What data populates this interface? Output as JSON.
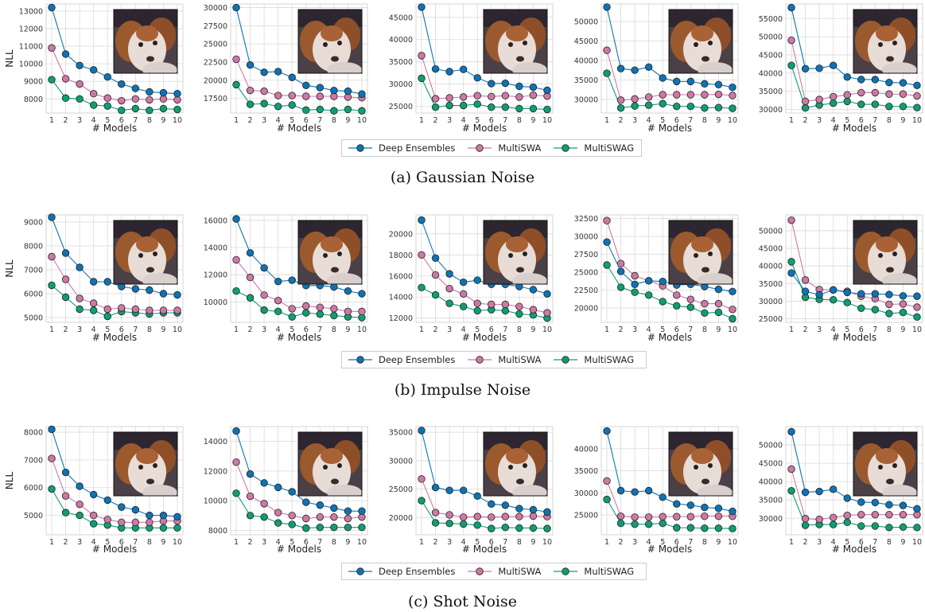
{
  "legend": {
    "deep_ensembles": "Deep Ensembles",
    "multiswa": "MultiSWA",
    "multiswag": "MultiSWAG"
  },
  "captions": [
    "(a)  Gaussian Noise",
    "(b)  Impulse Noise",
    "(c)  Shot Noise"
  ],
  "colors": {
    "deep_ensembles": "#0e73b5",
    "multiswa": "#cc79a7",
    "multiswag": "#0f9e73"
  },
  "chart_data": [
    {
      "type": "line",
      "row": "(a)  Gaussian Noise",
      "xlabel": "# Models",
      "ylabel": "NLL",
      "x": [
        1,
        2,
        3,
        4,
        5,
        6,
        7,
        8,
        9,
        10
      ],
      "yticks": [
        8000,
        9000,
        10000,
        11000,
        12000,
        13000
      ],
      "ylim": [
        7200,
        13400
      ],
      "series": [
        {
          "name": "Deep Ensembles",
          "values": [
            13200,
            10550,
            9900,
            9650,
            9250,
            8850,
            8600,
            8400,
            8350,
            8300
          ]
        },
        {
          "name": "MultiSWA",
          "values": [
            10900,
            9150,
            8850,
            8300,
            8050,
            7900,
            8000,
            7950,
            8000,
            7950
          ]
        },
        {
          "name": "MultiSWAG",
          "values": [
            9100,
            8050,
            8000,
            7650,
            7600,
            7350,
            7450,
            7350,
            7450,
            7400
          ]
        }
      ]
    },
    {
      "type": "line",
      "row": "(a)  Gaussian Noise",
      "xlabel": "# Models",
      "ylabel": "",
      "x": [
        1,
        2,
        3,
        4,
        5,
        6,
        7,
        8,
        9,
        10
      ],
      "yticks": [
        17500,
        20000,
        22500,
        25000,
        27500,
        30000
      ],
      "ylim": [
        15500,
        30500
      ],
      "series": [
        {
          "name": "Deep Ensembles",
          "values": [
            30000,
            22100,
            21100,
            21200,
            20400,
            19300,
            19000,
            18600,
            18500,
            18100
          ]
        },
        {
          "name": "MultiSWA",
          "values": [
            22900,
            18600,
            18500,
            17900,
            17900,
            17800,
            17800,
            17800,
            17700,
            17600
          ]
        },
        {
          "name": "MultiSWAG",
          "values": [
            19400,
            16700,
            16800,
            16400,
            16600,
            15900,
            16000,
            15800,
            16000,
            15800
          ]
        }
      ]
    },
    {
      "type": "line",
      "row": "(a)  Gaussian Noise",
      "xlabel": "# Models",
      "ylabel": "",
      "x": [
        1,
        2,
        3,
        4,
        5,
        6,
        7,
        8,
        9,
        10
      ],
      "yticks": [
        25000,
        30000,
        35000,
        40000,
        45000
      ],
      "ylim": [
        23500,
        48000
      ],
      "series": [
        {
          "name": "Deep Ensembles",
          "values": [
            47300,
            33400,
            32800,
            33300,
            31400,
            30100,
            30200,
            29500,
            29300,
            28600
          ]
        },
        {
          "name": "MultiSWA",
          "values": [
            36400,
            26700,
            26900,
            27100,
            27400,
            27200,
            27400,
            27100,
            27500,
            27300
          ]
        },
        {
          "name": "MultiSWAG",
          "values": [
            31300,
            24800,
            25200,
            25200,
            25500,
            24800,
            24800,
            24500,
            24500,
            24300
          ]
        }
      ]
    },
    {
      "type": "line",
      "row": "(a)  Gaussian Noise",
      "xlabel": "# Models",
      "ylabel": "",
      "x": [
        1,
        2,
        3,
        4,
        5,
        6,
        7,
        8,
        9,
        10
      ],
      "yticks": [
        30000,
        35000,
        40000,
        45000,
        50000
      ],
      "ylim": [
        26500,
        54500
      ],
      "series": [
        {
          "name": "Deep Ensembles",
          "values": [
            53700,
            37900,
            37500,
            38300,
            35500,
            34600,
            34600,
            34000,
            33800,
            33100
          ]
        },
        {
          "name": "MultiSWA",
          "values": [
            42600,
            29800,
            30100,
            30600,
            31200,
            31200,
            31200,
            31200,
            31300,
            31000
          ]
        },
        {
          "name": "MultiSWAG",
          "values": [
            36700,
            27800,
            28300,
            28500,
            28900,
            28200,
            28200,
            27800,
            27900,
            27700
          ]
        }
      ]
    },
    {
      "type": "line",
      "row": "(a)  Gaussian Noise",
      "xlabel": "# Models",
      "ylabel": "",
      "x": [
        1,
        2,
        3,
        4,
        5,
        6,
        7,
        8,
        9,
        10
      ],
      "yticks": [
        30000,
        35000,
        40000,
        45000,
        50000,
        55000
      ],
      "ylim": [
        29000,
        59000
      ],
      "series": [
        {
          "name": "Deep Ensembles",
          "values": [
            58000,
            41200,
            41300,
            42100,
            38900,
            38200,
            38200,
            37400,
            37300,
            36600
          ]
        },
        {
          "name": "MultiSWA",
          "values": [
            49000,
            32200,
            32700,
            33500,
            34000,
            34600,
            34600,
            34200,
            34200,
            33700
          ]
        },
        {
          "name": "MultiSWAG",
          "values": [
            42100,
            30400,
            31200,
            31700,
            32200,
            31400,
            31400,
            30800,
            30800,
            30500
          ]
        }
      ]
    },
    {
      "type": "line",
      "row": "(b)  Impulse Noise",
      "xlabel": "# Models",
      "ylabel": "NLL",
      "x": [
        1,
        2,
        3,
        4,
        5,
        6,
        7,
        8,
        9,
        10
      ],
      "yticks": [
        5000,
        6000,
        7000,
        8000,
        9000
      ],
      "ylim": [
        4800,
        9300
      ],
      "series": [
        {
          "name": "Deep Ensembles",
          "values": [
            9200,
            7700,
            7100,
            6500,
            6500,
            6300,
            6200,
            6150,
            6000,
            5950
          ]
        },
        {
          "name": "MultiSWA",
          "values": [
            7550,
            6600,
            5800,
            5600,
            5350,
            5400,
            5350,
            5300,
            5300,
            5300
          ]
        },
        {
          "name": "MultiSWAG",
          "values": [
            6350,
            5850,
            5350,
            5300,
            5050,
            5250,
            5200,
            5150,
            5200,
            5200
          ]
        }
      ]
    },
    {
      "type": "line",
      "row": "(b)  Impulse Noise",
      "xlabel": "# Models",
      "ylabel": "",
      "x": [
        1,
        2,
        3,
        4,
        5,
        6,
        7,
        8,
        9,
        10
      ],
      "yticks": [
        10000,
        12000,
        14000,
        16000
      ],
      "ylim": [
        8500,
        16400
      ],
      "series": [
        {
          "name": "Deep Ensembles",
          "values": [
            16100,
            13600,
            12500,
            11500,
            11600,
            11200,
            11200,
            11100,
            10800,
            10600
          ]
        },
        {
          "name": "MultiSWA",
          "values": [
            13100,
            11800,
            10500,
            10100,
            9500,
            9700,
            9600,
            9500,
            9300,
            9300
          ]
        },
        {
          "name": "MultiSWAG",
          "values": [
            10800,
            10300,
            9400,
            9300,
            8900,
            9200,
            9100,
            9000,
            8900,
            8850
          ]
        }
      ]
    },
    {
      "type": "line",
      "row": "(b)  Impulse Noise",
      "xlabel": "# Models",
      "ylabel": "",
      "x": [
        1,
        2,
        3,
        4,
        5,
        6,
        7,
        8,
        9,
        10
      ],
      "yticks": [
        12000,
        14000,
        16000,
        18000,
        20000
      ],
      "ylim": [
        11600,
        21800
      ],
      "series": [
        {
          "name": "Deep Ensembles",
          "values": [
            21300,
            17700,
            16200,
            15400,
            15600,
            15200,
            15200,
            15000,
            14700,
            14300
          ]
        },
        {
          "name": "MultiSWA",
          "values": [
            18000,
            16100,
            14800,
            14300,
            13400,
            13300,
            13300,
            13100,
            12800,
            12500
          ]
        },
        {
          "name": "MultiSWAG",
          "values": [
            14900,
            14200,
            13400,
            13100,
            12700,
            12800,
            12700,
            12400,
            12300,
            12000
          ]
        }
      ]
    },
    {
      "type": "line",
      "row": "(b)  Impulse Noise",
      "xlabel": "# Models",
      "ylabel": "",
      "x": [
        1,
        2,
        3,
        4,
        5,
        6,
        7,
        8,
        9,
        10
      ],
      "yticks": [
        20000,
        22500,
        25000,
        27500,
        30000,
        32500
      ],
      "ylim": [
        18000,
        33000
      ],
      "series": [
        {
          "name": "Deep Ensembles",
          "values": [
            29200,
            25100,
            23300,
            23800,
            23700,
            23200,
            23300,
            23000,
            22600,
            22300
          ]
        },
        {
          "name": "MultiSWA",
          "values": [
            32200,
            26200,
            24500,
            23800,
            23100,
            21800,
            21200,
            20600,
            20600,
            19800
          ]
        },
        {
          "name": "MultiSWAG",
          "values": [
            26000,
            22900,
            22200,
            21800,
            20900,
            20300,
            20100,
            19300,
            19400,
            18500
          ]
        }
      ]
    },
    {
      "type": "line",
      "row": "(b)  Impulse Noise",
      "xlabel": "# Models",
      "ylabel": "",
      "x": [
        1,
        2,
        3,
        4,
        5,
        6,
        7,
        8,
        9,
        10
      ],
      "yticks": [
        25000,
        30000,
        35000,
        40000,
        45000,
        50000
      ],
      "ylim": [
        24000,
        54500
      ],
      "series": [
        {
          "name": "Deep Ensembles",
          "values": [
            38000,
            32800,
            31800,
            33200,
            32500,
            32100,
            32100,
            31900,
            31500,
            31400
          ]
        },
        {
          "name": "MultiSWA",
          "values": [
            53000,
            36000,
            33300,
            33200,
            32800,
            31400,
            30700,
            29100,
            29200,
            28300
          ]
        },
        {
          "name": "MultiSWAG",
          "values": [
            41200,
            31100,
            30500,
            30400,
            29600,
            28000,
            27600,
            26500,
            26800,
            25500
          ]
        }
      ]
    },
    {
      "type": "line",
      "row": "(c)  Shot Noise",
      "xlabel": "# Models",
      "ylabel": "NLL",
      "x": [
        1,
        2,
        3,
        4,
        5,
        6,
        7,
        8,
        9,
        10
      ],
      "yticks": [
        5000,
        6000,
        7000,
        8000
      ],
      "ylim": [
        4300,
        8200
      ],
      "series": [
        {
          "name": "Deep Ensembles",
          "values": [
            8100,
            6550,
            6050,
            5750,
            5550,
            5300,
            5200,
            5000,
            5000,
            4950
          ]
        },
        {
          "name": "MultiSWA",
          "values": [
            7050,
            5700,
            5400,
            5000,
            4850,
            4750,
            4750,
            4750,
            4800,
            4800
          ]
        },
        {
          "name": "MultiSWAG",
          "values": [
            5950,
            5100,
            5000,
            4700,
            4650,
            4550,
            4550,
            4550,
            4550,
            4550
          ]
        }
      ]
    },
    {
      "type": "line",
      "row": "(c)  Shot Noise",
      "xlabel": "# Models",
      "ylabel": "",
      "x": [
        1,
        2,
        3,
        4,
        5,
        6,
        7,
        8,
        9,
        10
      ],
      "yticks": [
        8000,
        10000,
        12000,
        14000
      ],
      "ylim": [
        7700,
        15000
      ],
      "series": [
        {
          "name": "Deep Ensembles",
          "values": [
            14700,
            11800,
            11200,
            10900,
            10600,
            9900,
            9700,
            9500,
            9300,
            9300
          ]
        },
        {
          "name": "MultiSWA",
          "values": [
            12600,
            10300,
            9800,
            9200,
            9000,
            8800,
            8900,
            8900,
            8800,
            8900
          ]
        },
        {
          "name": "MultiSWAG",
          "values": [
            10500,
            9000,
            8900,
            8500,
            8400,
            8150,
            8200,
            8200,
            8200,
            8200
          ]
        }
      ]
    },
    {
      "type": "line",
      "row": "(c)  Shot Noise",
      "xlabel": "# Models",
      "ylabel": "",
      "x": [
        1,
        2,
        3,
        4,
        5,
        6,
        7,
        8,
        9,
        10
      ],
      "yticks": [
        20000,
        25000,
        30000,
        35000
      ],
      "ylim": [
        17000,
        36000
      ],
      "series": [
        {
          "name": "Deep Ensembles",
          "values": [
            35300,
            25300,
            24800,
            24800,
            23800,
            22400,
            22200,
            21600,
            21400,
            21000
          ]
        },
        {
          "name": "MultiSWA",
          "values": [
            26800,
            20900,
            20500,
            20100,
            20200,
            20100,
            20200,
            20200,
            20300,
            20200
          ]
        },
        {
          "name": "MultiSWAG",
          "values": [
            23000,
            19100,
            19000,
            18900,
            18700,
            18100,
            18300,
            18200,
            18200,
            18100
          ]
        }
      ]
    },
    {
      "type": "line",
      "row": "(c)  Shot Noise",
      "xlabel": "# Models",
      "ylabel": "",
      "x": [
        1,
        2,
        3,
        4,
        5,
        6,
        7,
        8,
        9,
        10
      ],
      "yticks": [
        25000,
        30000,
        35000,
        40000
      ],
      "ylim": [
        20500,
        45000
      ],
      "series": [
        {
          "name": "Deep Ensembles",
          "values": [
            44000,
            30500,
            30200,
            30500,
            29000,
            27500,
            27200,
            26700,
            26500,
            25800
          ]
        },
        {
          "name": "MultiSWA",
          "values": [
            32700,
            24700,
            24500,
            24500,
            24600,
            24600,
            24600,
            24700,
            24700,
            24700
          ]
        },
        {
          "name": "MultiSWAG",
          "values": [
            28500,
            23100,
            22900,
            22900,
            23100,
            22100,
            22100,
            22000,
            22000,
            21900
          ]
        }
      ]
    },
    {
      "type": "line",
      "row": "(c)  Shot Noise",
      "xlabel": "# Models",
      "ylabel": "",
      "x": [
        1,
        2,
        3,
        4,
        5,
        6,
        7,
        8,
        9,
        10
      ],
      "yticks": [
        30000,
        35000,
        40000,
        45000,
        50000
      ],
      "ylim": [
        25500,
        55000
      ],
      "series": [
        {
          "name": "Deep Ensembles",
          "values": [
            53600,
            37100,
            37300,
            37900,
            35500,
            34400,
            34300,
            33700,
            33500,
            32600
          ]
        },
        {
          "name": "MultiSWA",
          "values": [
            43400,
            29900,
            29700,
            30200,
            30800,
            31000,
            31000,
            31000,
            31000,
            31000
          ]
        },
        {
          "name": "MultiSWAG",
          "values": [
            37500,
            28100,
            28300,
            28300,
            28900,
            27900,
            27900,
            27500,
            27600,
            27500
          ]
        }
      ]
    }
  ]
}
